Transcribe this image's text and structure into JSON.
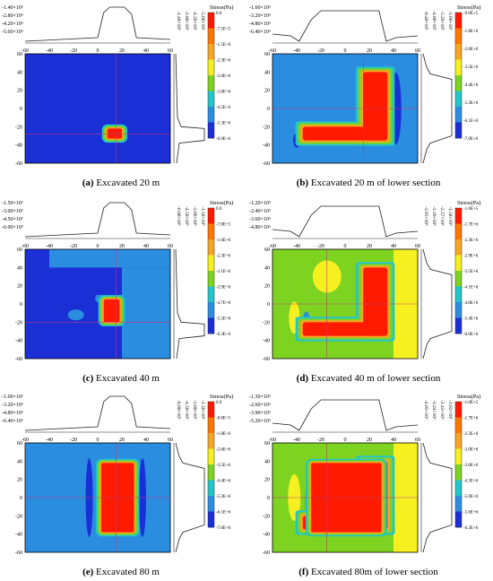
{
  "figure": {
    "panels": [
      {
        "id": "a",
        "letter": "(a)",
        "caption": "Excavated 20 m",
        "top_axis_labels": [
          "-1.40×10⁶",
          "-2.80×10⁶",
          "-4.20×10⁶",
          "-5.60×10⁶"
        ],
        "right_axis_labels": [
          "-1.40×10⁶",
          "-2.80×10⁶",
          "-4.20×10⁶",
          "-5.60×10⁶"
        ],
        "x_ticks": [
          "-60",
          "-40",
          "-20",
          "0",
          "20",
          "40",
          "60"
        ],
        "y_ticks": [
          "60",
          "40",
          "20",
          "0",
          "-20",
          "-40",
          "-60"
        ],
        "legend_title": "Stress(Pa)",
        "legend_values": [
          "0.0",
          "-7.5E+5",
          "-1.5E+6",
          "-2.3E+6",
          "-3.0E+6",
          "-3.8E+6",
          "-4.5E+6",
          "-5.3E+6",
          "-6.0E+6"
        ],
        "colors": {
          "background": "#1a2fd6",
          "core": "#ff1a00",
          "ring1": "#f5a623",
          "ring2": "#7ed321",
          "ring3": "#23c6c8"
        }
      },
      {
        "id": "b",
        "letter": "(b)",
        "caption": "Excavated 20 m of lower section",
        "top_axis_labels": [
          "-1.60×10⁶",
          "-3.20×10⁶",
          "-4.80×10⁶",
          "-6.40×10⁶"
        ],
        "right_axis_labels": [
          "-6.40×10⁶",
          "-4.80×10⁶",
          "-3.20×10⁶",
          "-1.60×10⁶"
        ],
        "x_ticks": [
          "-60",
          "-40",
          "-20",
          "0",
          "20",
          "40",
          "60"
        ],
        "y_ticks": [
          "60",
          "40",
          "20",
          "0",
          "-20",
          "-40",
          "-60"
        ],
        "legend_title": "Stress(Pa)",
        "legend_values": [
          "-9.0E+5",
          "-1.8E+6",
          "-2.6E+6",
          "-3.5E+6",
          "-4.4E+6",
          "-5.3E+6",
          "-6.1E+6",
          "-7.0E+6"
        ],
        "colors": {
          "background": "#2b8de0",
          "core": "#ff1a00",
          "ring1": "#f5a623",
          "ring2": "#7ed321",
          "ring3": "#23c6c8",
          "dark": "#1a2fd6"
        }
      },
      {
        "id": "c",
        "letter": "(c)",
        "caption": "Excavated 40 m",
        "top_axis_labels": [
          "-1.50×10⁶",
          "-3.00×10⁶",
          "-4.50×10⁶",
          "-6.00×10⁶"
        ],
        "right_axis_labels": [
          "-6.00×10⁶",
          "-4.50×10⁶",
          "-3.00×10⁶",
          "-1.50×10⁶"
        ],
        "x_ticks": [
          "-60",
          "-40",
          "-20",
          "0",
          "20",
          "40",
          "60"
        ],
        "y_ticks": [
          "60",
          "40",
          "20",
          "0",
          "-20",
          "-40",
          "-60"
        ],
        "legend_title": "Stress(Pa)",
        "legend_values": [
          "0.0",
          "-7.8E+5",
          "-1.6E+6",
          "-2.3E+6",
          "-3.1E+6",
          "-3.9E+6",
          "-4.7E+6",
          "-5.5E+6",
          "-6.3E+6"
        ],
        "colors": {
          "background": "#1a2fd6",
          "light": "#2b8de0",
          "core": "#ff1a00",
          "ring1": "#f5a623",
          "ring2": "#7ed321",
          "ring3": "#23c6c8"
        }
      },
      {
        "id": "d",
        "letter": "(d)",
        "caption": "Excavated 40 m of lower section",
        "top_axis_labels": [
          "-1.20×10⁶",
          "-2.40×10⁶",
          "-3.60×10⁶",
          "-4.80×10⁶"
        ],
        "right_axis_labels": [
          "-3.95×10⁶",
          "-3.16×10⁶",
          "-2.37×10⁶",
          "-1.58×10⁶"
        ],
        "x_ticks": [
          "-60",
          "-40",
          "-20",
          "0",
          "20",
          "40",
          "60"
        ],
        "y_ticks": [
          "60",
          "40",
          "20",
          "0",
          "-20",
          "-40",
          "-60"
        ],
        "legend_title": "Stress(Pa)",
        "legend_values": [
          "-1.0E+5",
          "-1.7E+6",
          "-2.3E+6",
          "-2.9E+6",
          "-3.5E+6",
          "-4.1E+6",
          "-4.8E+6",
          "-5.4E+6",
          "-6.0E+6"
        ],
        "colors": {
          "background": "#7ed321",
          "yellow": "#f7f021",
          "core": "#ff1a00",
          "ring1": "#f5a623",
          "ring3": "#23c6c8",
          "light": "#2b8de0"
        }
      },
      {
        "id": "e",
        "letter": "(e)",
        "caption": "Excavated 80 m",
        "top_axis_labels": [
          "-1.60×10⁶",
          "-3.20×10⁶",
          "-4.80×10⁶",
          "-6.40×10⁶"
        ],
        "right_axis_labels": [
          "-6.00×10⁶",
          "-4.50×10⁶",
          "-3.00×10⁶",
          "-1.50×10⁶"
        ],
        "x_ticks": [
          "-60",
          "-40",
          "-20",
          "0",
          "20",
          "40",
          "60"
        ],
        "y_ticks": [
          "60",
          "40",
          "20",
          "0",
          "-20",
          "-40",
          "-60"
        ],
        "legend_title": "Stress(Pa)",
        "legend_values": [
          "0.0",
          "-8.8E+5",
          "-1.8E+6",
          "-2.6E+6",
          "-3.5E+6",
          "-4.4E+6",
          "-5.3E+6",
          "-6.1E+6",
          "-7.0E+6"
        ],
        "colors": {
          "background": "#2b8de0",
          "dark": "#1a2fd6",
          "core": "#ff1a00",
          "ring1": "#f5a623",
          "ring2": "#7ed321",
          "ring3": "#23c6c8"
        }
      },
      {
        "id": "f",
        "letter": "(f)",
        "caption": "Excavated 80m of lower section",
        "top_axis_labels": [
          "-1.30×10⁶",
          "-2.60×10⁶",
          "-3.90×10⁶",
          "-5.20×10⁶"
        ],
        "right_axis_labels": [
          "-4.05×10⁶",
          "-3.24×10⁶",
          "-2.43×10⁶",
          "-1.62×10⁶"
        ],
        "x_ticks": [
          "-60",
          "-40",
          "-20",
          "0",
          "20",
          "40",
          "60"
        ],
        "y_ticks": [
          "60",
          "40",
          "20",
          "0",
          "-20",
          "-40",
          "-60"
        ],
        "legend_title": "Stress(Pa)",
        "legend_values": [
          "-1.0E+5",
          "-1.7E+6",
          "-2.3E+6",
          "-3.0E+6",
          "-3.6E+6",
          "-4.3E+6",
          "-5.0E+6",
          "-5.6E+6",
          "-6.3E+6"
        ],
        "colors": {
          "background": "#7ed321",
          "yellow": "#f7f021",
          "core": "#ff1a00",
          "ring1": "#f5a623",
          "ring3": "#23c6c8",
          "light": "#2b8de0"
        }
      }
    ],
    "legend_gradient": [
      "#ff1a00",
      "#ff7700",
      "#f5a623",
      "#f7f021",
      "#7ed321",
      "#23c6c8",
      "#2b8de0",
      "#1a2fd6"
    ]
  }
}
